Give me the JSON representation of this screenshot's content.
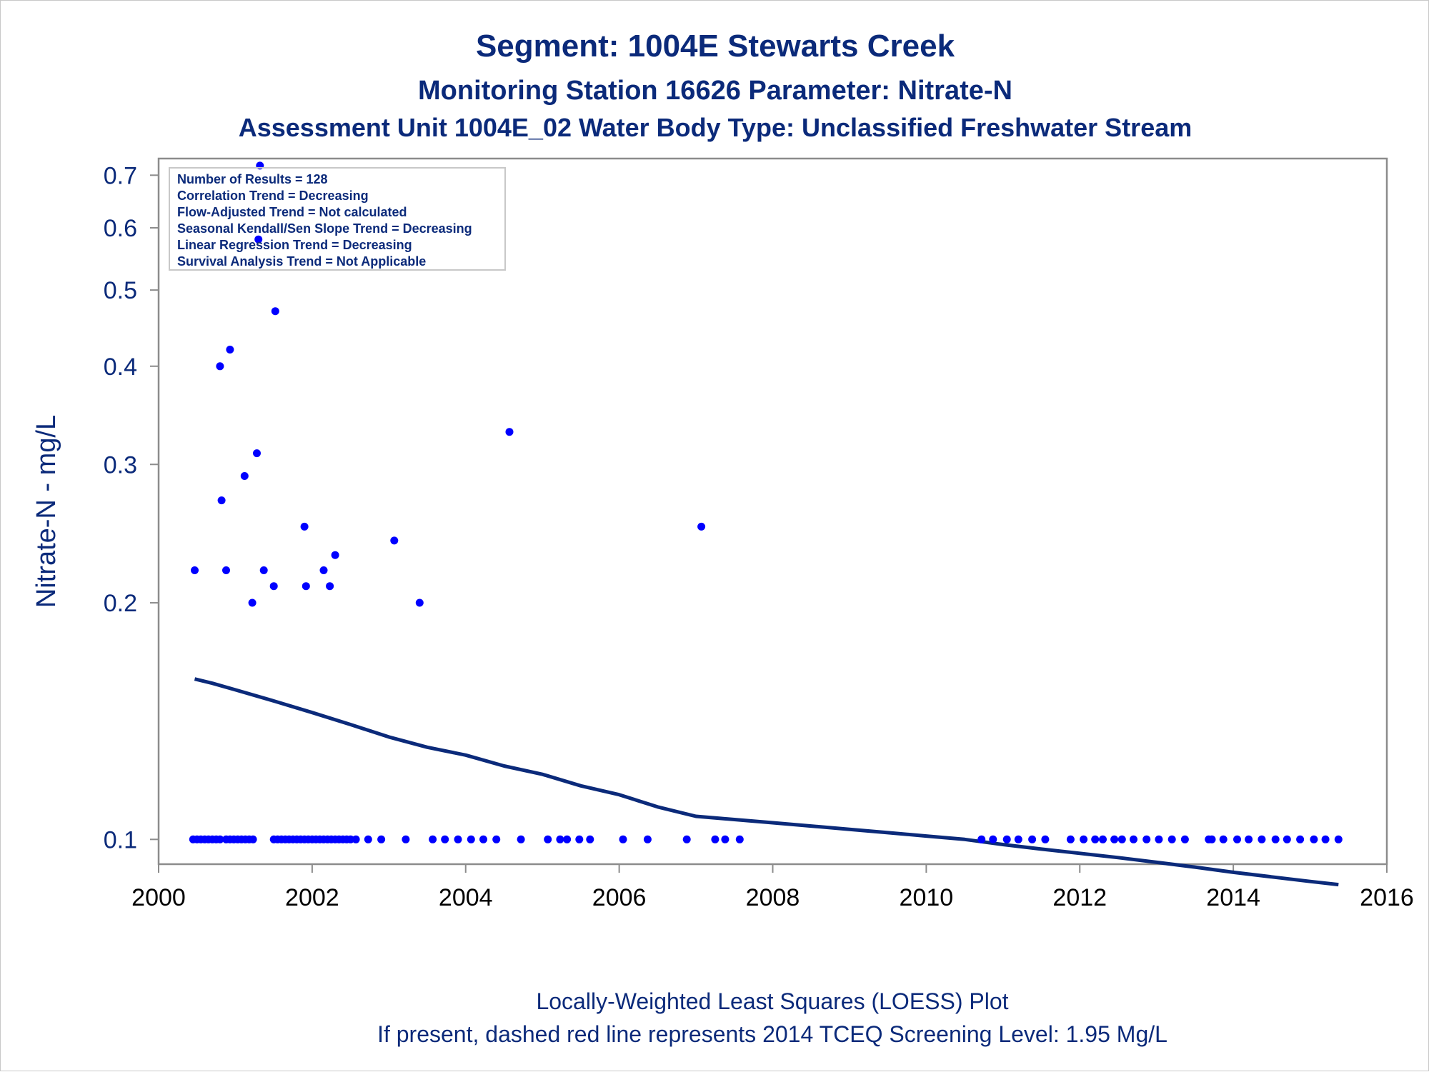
{
  "chart_data": {
    "type": "scatter",
    "title": "Segment: 1004E  Stewarts Creek",
    "subtitle": "Monitoring Station 16626 Parameter: Nitrate-N",
    "subtitle2": "Assessment Unit 1004E_02   Water Body Type: Unclassified Freshwater Stream",
    "xlabel": "",
    "ylabel": "Nitrate-N - mg/L",
    "xlim": [
      2000,
      2016
    ],
    "ylim": [
      0.093,
      0.735
    ],
    "yscale": "log",
    "xticks": [
      2000,
      2002,
      2004,
      2006,
      2008,
      2010,
      2012,
      2014,
      2016
    ],
    "yticks": [
      0.1,
      0.2,
      0.3,
      0.4,
      0.5,
      0.6,
      0.7
    ],
    "yticklabels": [
      "0.1",
      "0.2",
      "0.3",
      "0.4",
      "0.5",
      "0.6",
      "0.7"
    ],
    "grid": false,
    "point_color": "#0000ff",
    "line_color": "#0b2a7a",
    "text_color": "#0b2a7a",
    "stats_box": [
      "Number of Results = 128",
      "Correlation Trend = Decreasing",
      "Flow-Adjusted Trend = Not calculated",
      "Seasonal Kendall/Sen Slope Trend = Decreasing",
      "Linear Regression Trend = Decreasing",
      "Survival Analysis Trend = Not Applicable"
    ],
    "footnotes": [
      "Locally-Weighted Least Squares (LOESS) Plot",
      "If present, dashed red line represents 2014 TCEQ Screening Level: 1.95 Mg/L"
    ],
    "series": [
      {
        "kind": "points",
        "points": [
          [
            2000.47,
            0.22
          ],
          [
            2000.8,
            0.4
          ],
          [
            2000.82,
            0.27
          ],
          [
            2000.88,
            0.22
          ],
          [
            2000.93,
            0.42
          ],
          [
            2001.12,
            0.29
          ],
          [
            2001.22,
            0.2
          ],
          [
            2001.28,
            0.31
          ],
          [
            2001.3,
            0.58
          ],
          [
            2001.32,
            0.72
          ],
          [
            2001.37,
            0.22
          ],
          [
            2001.5,
            0.21
          ],
          [
            2001.52,
            0.47
          ],
          [
            2001.9,
            0.25
          ],
          [
            2001.92,
            0.21
          ],
          [
            2002.15,
            0.22
          ],
          [
            2002.23,
            0.21
          ],
          [
            2002.3,
            0.23
          ],
          [
            2003.07,
            0.24
          ],
          [
            2003.4,
            0.2
          ],
          [
            2004.57,
            0.33
          ],
          [
            2007.07,
            0.25
          ],
          [
            2000.45,
            0.1
          ],
          [
            2000.5,
            0.1
          ],
          [
            2000.55,
            0.1
          ],
          [
            2000.6,
            0.1
          ],
          [
            2000.65,
            0.1
          ],
          [
            2000.7,
            0.1
          ],
          [
            2000.75,
            0.1
          ],
          [
            2000.8,
            0.1
          ],
          [
            2000.88,
            0.1
          ],
          [
            2000.93,
            0.1
          ],
          [
            2000.98,
            0.1
          ],
          [
            2001.03,
            0.1
          ],
          [
            2001.08,
            0.1
          ],
          [
            2001.13,
            0.1
          ],
          [
            2001.18,
            0.1
          ],
          [
            2001.23,
            0.1
          ],
          [
            2001.5,
            0.1
          ],
          [
            2001.55,
            0.1
          ],
          [
            2001.6,
            0.1
          ],
          [
            2001.65,
            0.1
          ],
          [
            2001.7,
            0.1
          ],
          [
            2001.75,
            0.1
          ],
          [
            2001.8,
            0.1
          ],
          [
            2001.85,
            0.1
          ],
          [
            2001.9,
            0.1
          ],
          [
            2001.95,
            0.1
          ],
          [
            2002.0,
            0.1
          ],
          [
            2002.05,
            0.1
          ],
          [
            2002.1,
            0.1
          ],
          [
            2002.15,
            0.1
          ],
          [
            2002.2,
            0.1
          ],
          [
            2002.25,
            0.1
          ],
          [
            2002.3,
            0.1
          ],
          [
            2002.35,
            0.1
          ],
          [
            2002.4,
            0.1
          ],
          [
            2002.45,
            0.1
          ],
          [
            2002.5,
            0.1
          ],
          [
            2002.57,
            0.1
          ],
          [
            2002.73,
            0.1
          ],
          [
            2002.9,
            0.1
          ],
          [
            2003.22,
            0.1
          ],
          [
            2003.57,
            0.1
          ],
          [
            2003.73,
            0.1
          ],
          [
            2003.9,
            0.1
          ],
          [
            2004.07,
            0.1
          ],
          [
            2004.23,
            0.1
          ],
          [
            2004.4,
            0.1
          ],
          [
            2004.72,
            0.1
          ],
          [
            2005.07,
            0.1
          ],
          [
            2005.23,
            0.1
          ],
          [
            2005.32,
            0.1
          ],
          [
            2005.48,
            0.1
          ],
          [
            2005.62,
            0.1
          ],
          [
            2006.05,
            0.1
          ],
          [
            2006.37,
            0.1
          ],
          [
            2006.88,
            0.1
          ],
          [
            2007.25,
            0.1
          ],
          [
            2007.38,
            0.1
          ],
          [
            2007.57,
            0.1
          ],
          [
            2010.72,
            0.1
          ],
          [
            2010.87,
            0.1
          ],
          [
            2011.05,
            0.1
          ],
          [
            2011.2,
            0.1
          ],
          [
            2011.38,
            0.1
          ],
          [
            2011.55,
            0.1
          ],
          [
            2011.88,
            0.1
          ],
          [
            2012.05,
            0.1
          ],
          [
            2012.2,
            0.1
          ],
          [
            2012.3,
            0.1
          ],
          [
            2012.45,
            0.1
          ],
          [
            2012.55,
            0.1
          ],
          [
            2012.7,
            0.1
          ],
          [
            2012.87,
            0.1
          ],
          [
            2013.03,
            0.1
          ],
          [
            2013.2,
            0.1
          ],
          [
            2013.37,
            0.1
          ],
          [
            2013.68,
            0.1
          ],
          [
            2013.72,
            0.1
          ],
          [
            2013.87,
            0.1
          ],
          [
            2014.05,
            0.1
          ],
          [
            2014.2,
            0.1
          ],
          [
            2014.37,
            0.1
          ],
          [
            2014.55,
            0.1
          ],
          [
            2014.7,
            0.1
          ],
          [
            2014.87,
            0.1
          ],
          [
            2015.05,
            0.1
          ],
          [
            2015.2,
            0.1
          ],
          [
            2015.37,
            0.1
          ]
        ]
      },
      {
        "kind": "loess",
        "points": [
          [
            2000.47,
            0.16
          ],
          [
            2000.7,
            0.158
          ],
          [
            2001.0,
            0.155
          ],
          [
            2001.5,
            0.15
          ],
          [
            2002.0,
            0.145
          ],
          [
            2002.5,
            0.14
          ],
          [
            2003.0,
            0.135
          ],
          [
            2003.5,
            0.131
          ],
          [
            2004.0,
            0.128
          ],
          [
            2004.5,
            0.124
          ],
          [
            2005.0,
            0.121
          ],
          [
            2005.5,
            0.117
          ],
          [
            2006.0,
            0.114
          ],
          [
            2006.5,
            0.11
          ],
          [
            2007.0,
            0.107
          ],
          [
            2007.5,
            0.106
          ],
          [
            2008.0,
            0.105
          ],
          [
            2008.5,
            0.104
          ],
          [
            2009.0,
            0.103
          ],
          [
            2009.5,
            0.102
          ],
          [
            2010.0,
            0.101
          ],
          [
            2010.5,
            0.1
          ],
          [
            2011.0,
            0.0985
          ],
          [
            2011.5,
            0.0972
          ],
          [
            2012.0,
            0.096
          ],
          [
            2012.5,
            0.0948
          ],
          [
            2013.0,
            0.0935
          ],
          [
            2013.5,
            0.0922
          ],
          [
            2014.0,
            0.0908
          ],
          [
            2014.5,
            0.0896
          ],
          [
            2015.0,
            0.0884
          ],
          [
            2015.37,
            0.0876
          ]
        ]
      }
    ]
  }
}
